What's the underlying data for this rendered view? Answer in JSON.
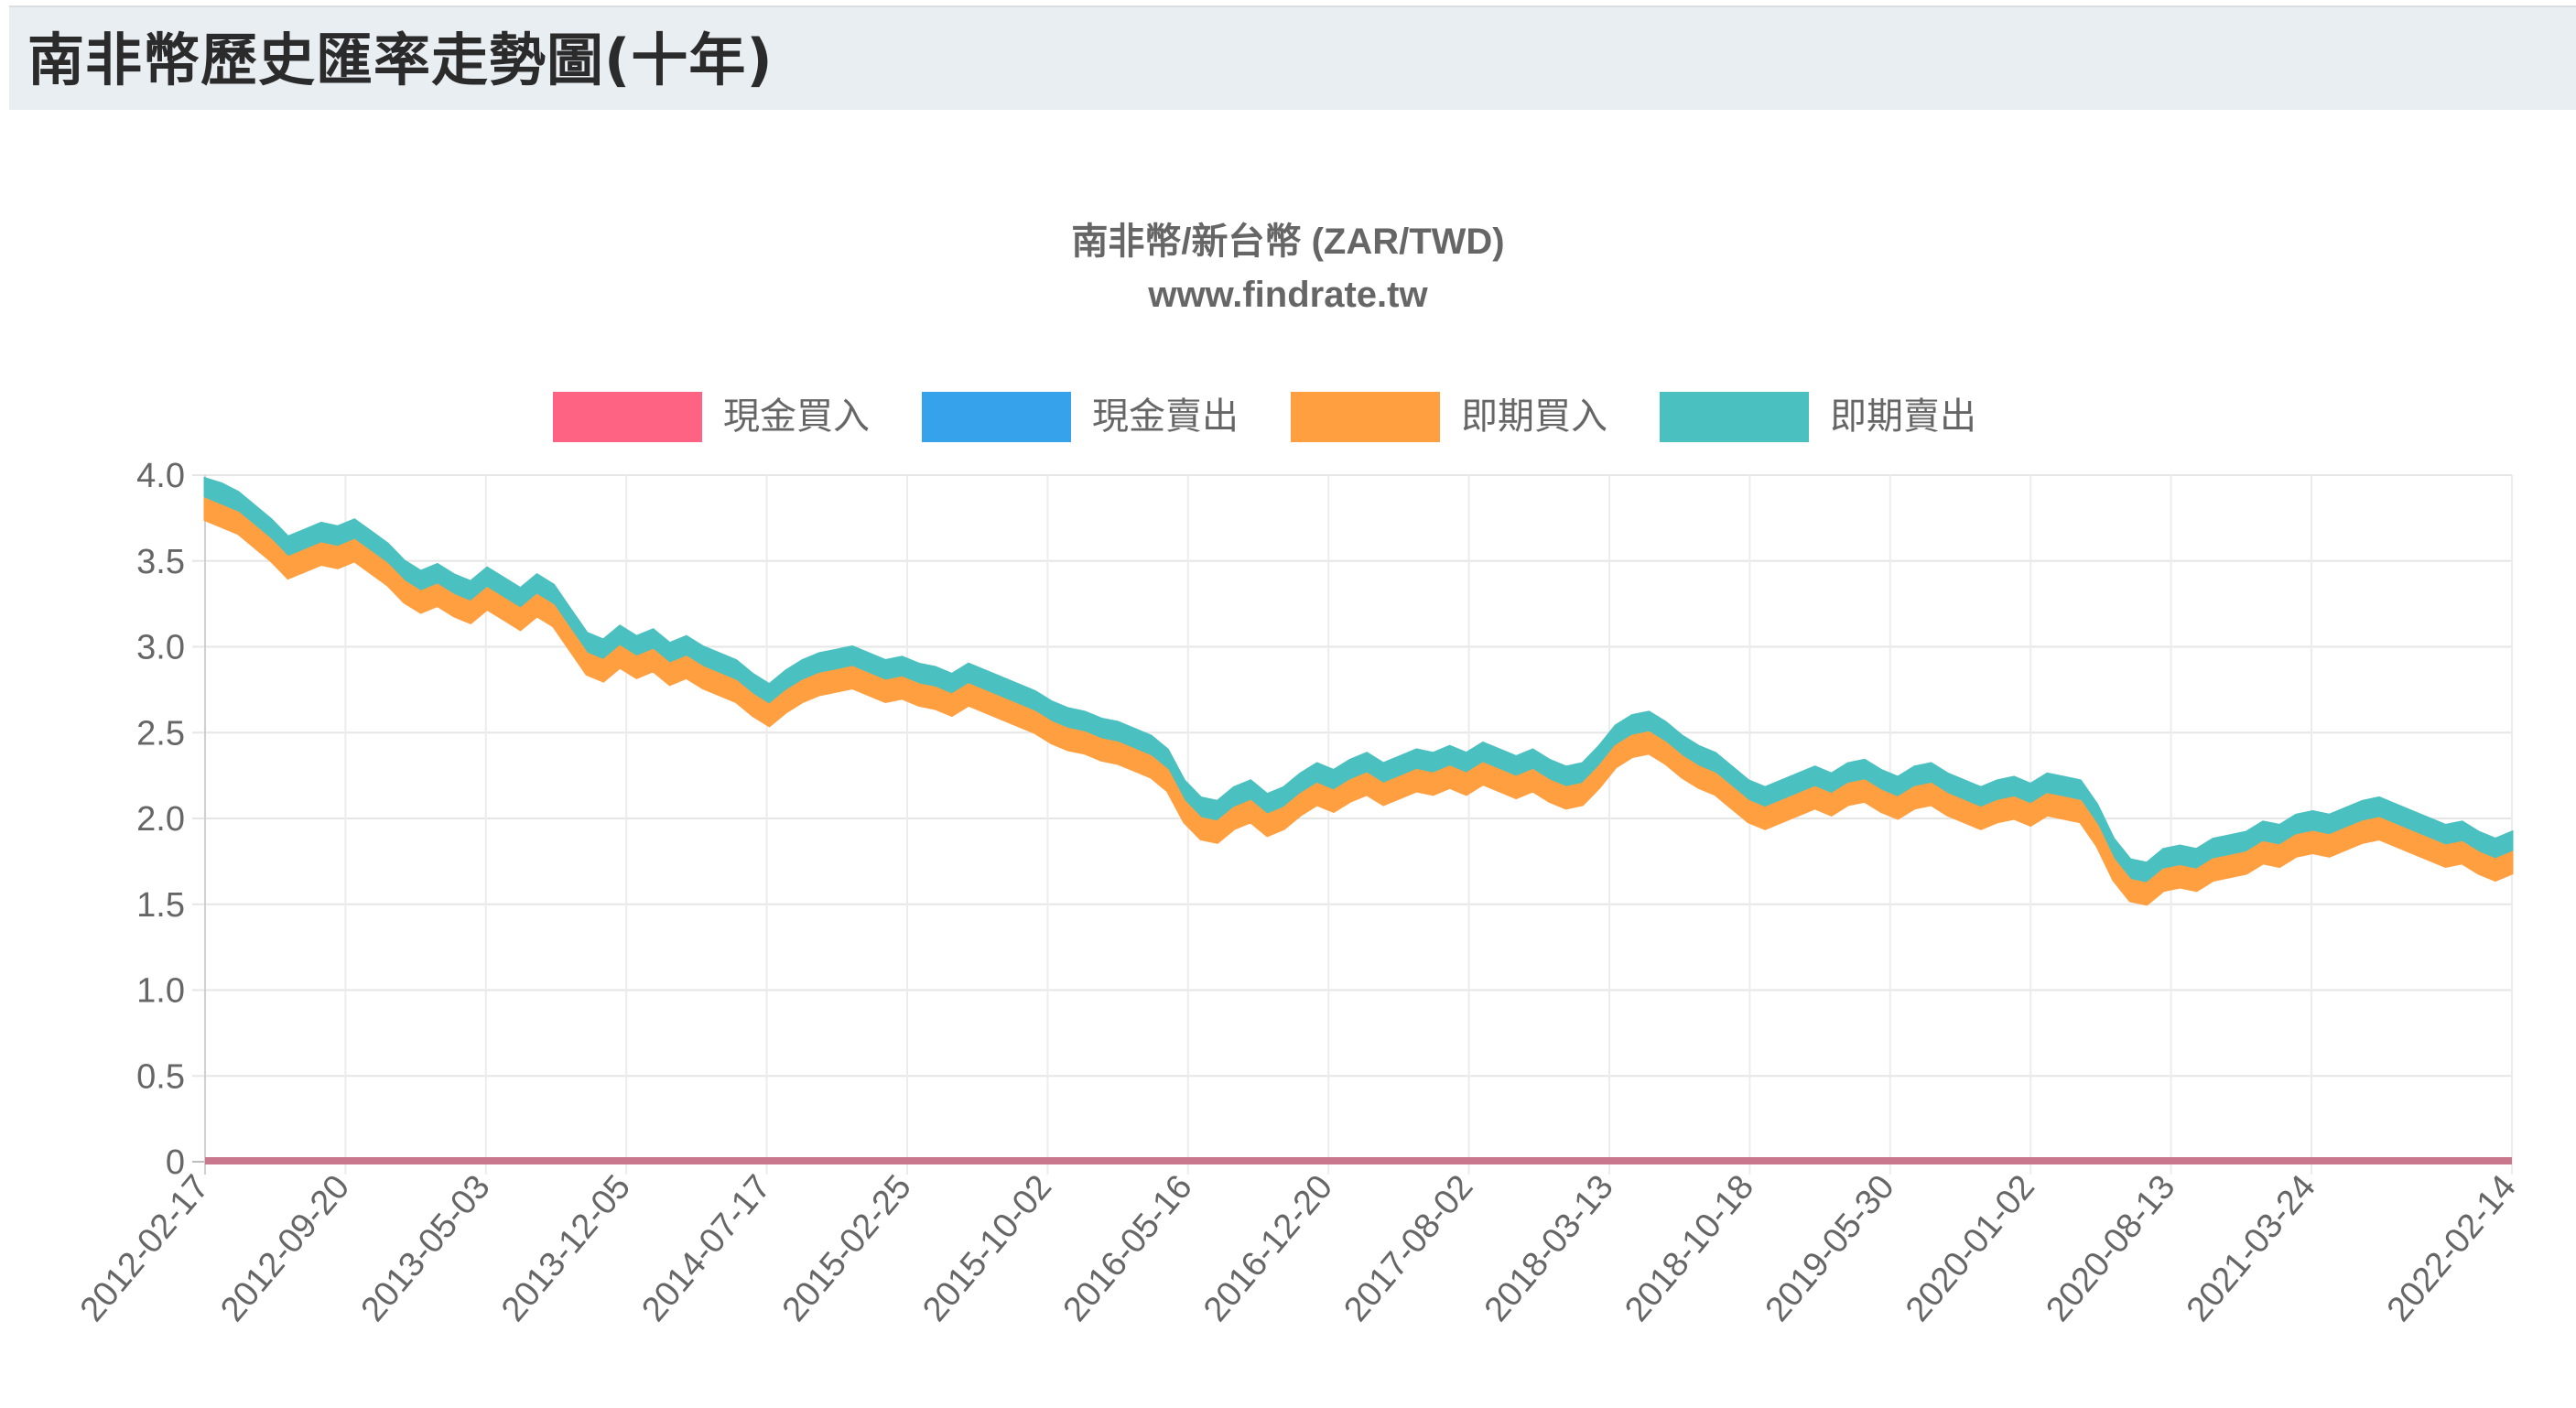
{
  "header": {
    "title": "南非幣歷史匯率走勢圖(十年)"
  },
  "chart_data": {
    "type": "area",
    "title": "南非幣/新台幣 (ZAR/TWD)",
    "subtitle": "www.findrate.tw",
    "xlabel": "",
    "ylabel": "",
    "ylim": [
      0,
      4.0
    ],
    "y_ticks": [
      "4.0",
      "3.5",
      "3.0",
      "2.5",
      "2.0",
      "1.5",
      "1.0",
      "0.5",
      "0"
    ],
    "x_tick_labels": [
      "2012-02-17",
      "2012-09-20",
      "2013-05-03",
      "2013-12-05",
      "2014-07-17",
      "2015-02-25",
      "2015-10-02",
      "2016-05-16",
      "2016-12-20",
      "2017-08-02",
      "2018-03-13",
      "2018-10-18",
      "2019-05-30",
      "2020-01-02",
      "2020-08-13",
      "2021-03-24",
      "2022-02-14"
    ],
    "grid": true,
    "legend_position": "top",
    "x_range": [
      "2012-02-17",
      "2022-02-14"
    ],
    "series": [
      {
        "name": "現金買入",
        "color": "#ff6384",
        "note": "rendered flat at 0",
        "values": [
          0,
          0
        ]
      },
      {
        "name": "現金賣出",
        "color": "#36a2eb",
        "note": "hidden behind other series (flat at 0)",
        "values": [
          0,
          0
        ]
      },
      {
        "name": "即期買入",
        "color": "#ff9f40",
        "values": [
          3.86,
          3.82,
          3.78,
          3.7,
          3.62,
          3.52,
          3.56,
          3.6,
          3.58,
          3.62,
          3.55,
          3.48,
          3.38,
          3.32,
          3.36,
          3.3,
          3.26,
          3.34,
          3.28,
          3.22,
          3.3,
          3.24,
          3.1,
          2.96,
          2.92,
          3.0,
          2.94,
          2.98,
          2.9,
          2.94,
          2.88,
          2.84,
          2.8,
          2.72,
          2.66,
          2.74,
          2.8,
          2.84,
          2.86,
          2.88,
          2.84,
          2.8,
          2.82,
          2.78,
          2.76,
          2.72,
          2.78,
          2.74,
          2.7,
          2.66,
          2.62,
          2.56,
          2.52,
          2.5,
          2.46,
          2.44,
          2.4,
          2.36,
          2.28,
          2.1,
          2.0,
          1.98,
          2.06,
          2.1,
          2.02,
          2.06,
          2.14,
          2.2,
          2.16,
          2.22,
          2.26,
          2.2,
          2.24,
          2.28,
          2.26,
          2.3,
          2.26,
          2.32,
          2.28,
          2.24,
          2.28,
          2.22,
          2.18,
          2.2,
          2.3,
          2.42,
          2.48,
          2.5,
          2.44,
          2.36,
          2.3,
          2.26,
          2.18,
          2.1,
          2.06,
          2.1,
          2.14,
          2.18,
          2.14,
          2.2,
          2.22,
          2.16,
          2.12,
          2.18,
          2.2,
          2.14,
          2.1,
          2.06,
          2.1,
          2.12,
          2.08,
          2.14,
          2.12,
          2.1,
          1.96,
          1.76,
          1.64,
          1.62,
          1.7,
          1.72,
          1.7,
          1.76,
          1.78,
          1.8,
          1.86,
          1.84,
          1.9,
          1.92,
          1.9,
          1.94,
          1.98,
          2.0,
          1.96,
          1.92,
          1.88,
          1.84,
          1.86,
          1.8,
          1.76,
          1.8
        ]
      },
      {
        "name": "即期賣出",
        "color": "#4bc0c0",
        "values": [
          3.98,
          3.95,
          3.9,
          3.82,
          3.74,
          3.64,
          3.68,
          3.72,
          3.7,
          3.74,
          3.67,
          3.6,
          3.5,
          3.44,
          3.48,
          3.42,
          3.38,
          3.46,
          3.4,
          3.34,
          3.42,
          3.36,
          3.22,
          3.08,
          3.04,
          3.12,
          3.06,
          3.1,
          3.02,
          3.06,
          3.0,
          2.96,
          2.92,
          2.84,
          2.78,
          2.86,
          2.92,
          2.96,
          2.98,
          3.0,
          2.96,
          2.92,
          2.94,
          2.9,
          2.88,
          2.84,
          2.9,
          2.86,
          2.82,
          2.78,
          2.74,
          2.68,
          2.64,
          2.62,
          2.58,
          2.56,
          2.52,
          2.48,
          2.4,
          2.22,
          2.12,
          2.1,
          2.18,
          2.22,
          2.14,
          2.18,
          2.26,
          2.32,
          2.28,
          2.34,
          2.38,
          2.32,
          2.36,
          2.4,
          2.38,
          2.42,
          2.38,
          2.44,
          2.4,
          2.36,
          2.4,
          2.34,
          2.3,
          2.32,
          2.42,
          2.54,
          2.6,
          2.62,
          2.56,
          2.48,
          2.42,
          2.38,
          2.3,
          2.22,
          2.18,
          2.22,
          2.26,
          2.3,
          2.26,
          2.32,
          2.34,
          2.28,
          2.24,
          2.3,
          2.32,
          2.26,
          2.22,
          2.18,
          2.22,
          2.24,
          2.2,
          2.26,
          2.24,
          2.22,
          2.08,
          1.88,
          1.76,
          1.74,
          1.82,
          1.84,
          1.82,
          1.88,
          1.9,
          1.92,
          1.98,
          1.96,
          2.02,
          2.04,
          2.02,
          2.06,
          2.1,
          2.12,
          2.08,
          2.04,
          2.0,
          1.96,
          1.98,
          1.92,
          1.88,
          1.92
        ]
      }
    ]
  },
  "legend": {
    "items": [
      {
        "label": "現金買入",
        "color": "#ff6384"
      },
      {
        "label": "現金賣出",
        "color": "#36a2eb"
      },
      {
        "label": "即期買入",
        "color": "#ff9f40"
      },
      {
        "label": "即期賣出",
        "color": "#4bc0c0"
      }
    ]
  }
}
